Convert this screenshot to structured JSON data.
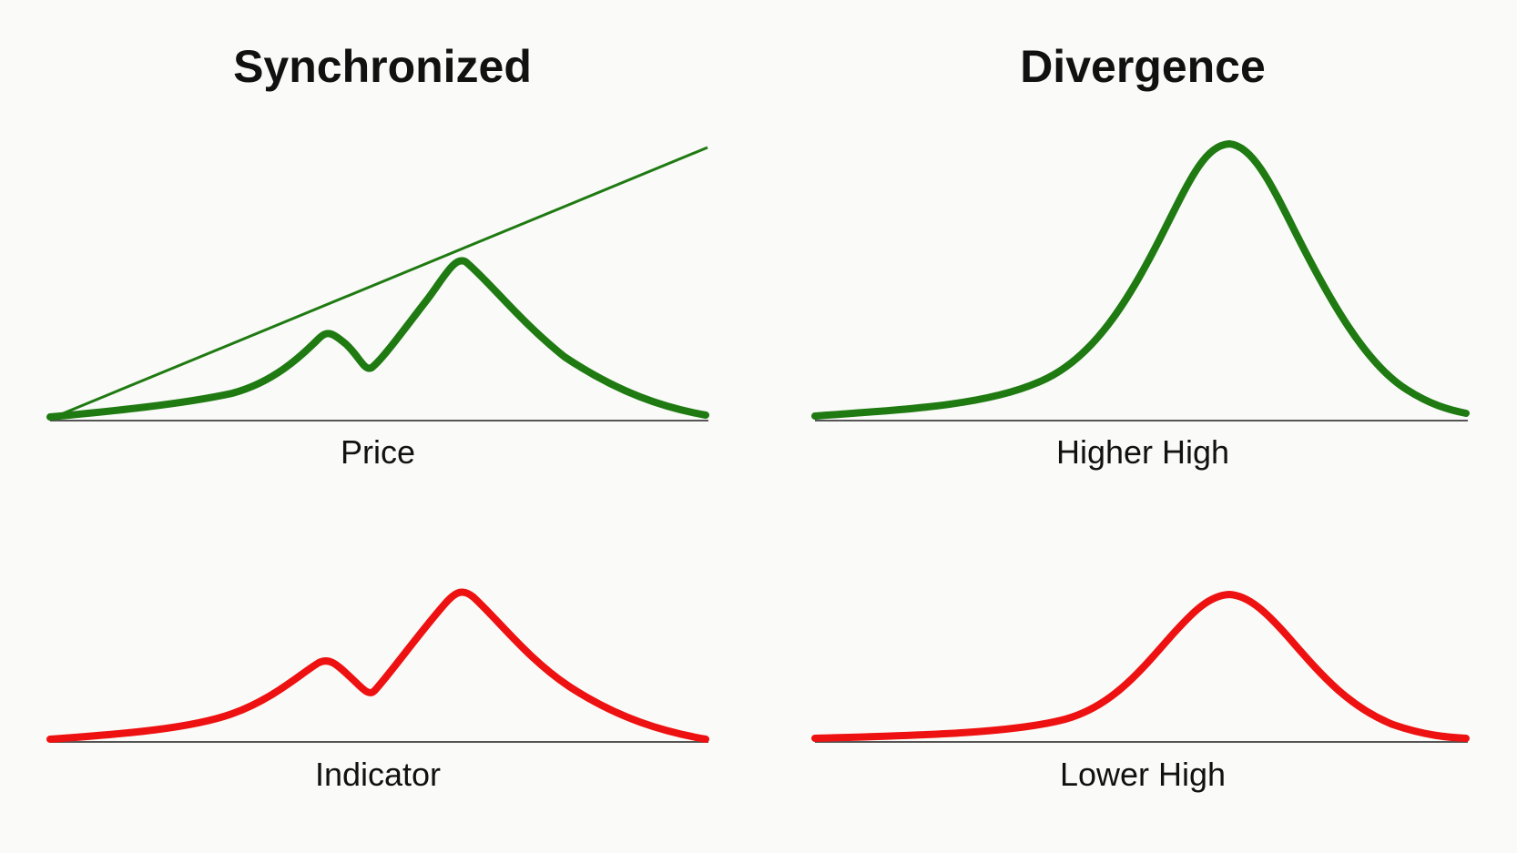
{
  "panels": {
    "synchronized": {
      "title": "Synchronized",
      "price_label": "Price",
      "indicator_label": "Indicator"
    },
    "divergence": {
      "title": "Divergence",
      "price_label": "Higher High",
      "indicator_label": "Lower High"
    }
  },
  "colors": {
    "price_line": "#1f7a12",
    "indicator_line": "#ee1111",
    "baseline": "#555555",
    "trendline": "#1f7a12",
    "text": "#111111"
  }
}
